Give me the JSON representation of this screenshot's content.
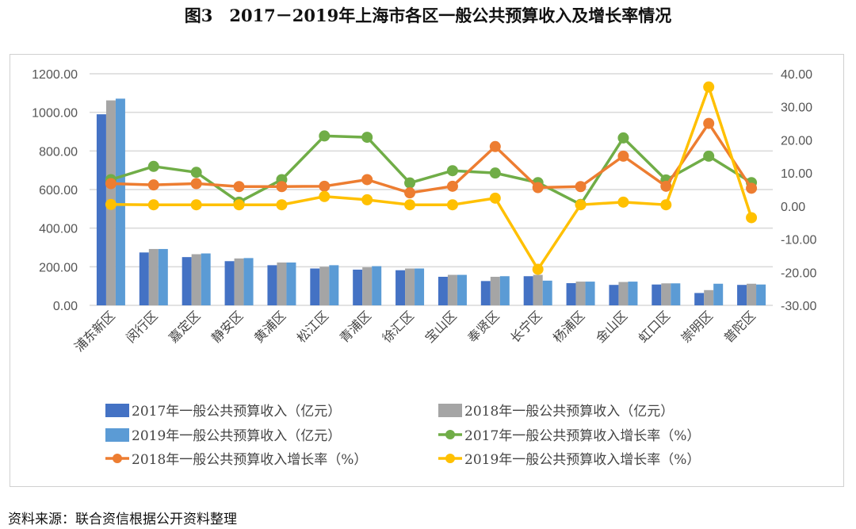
{
  "title": "图3　2017－2019年上海市各区一般公共预算收入及增长率情况",
  "source": "资料来源：联合资信根据公开资料整理",
  "chart_data": {
    "type": "bar+line",
    "categories": [
      "浦东新区",
      "闵行区",
      "嘉定区",
      "静安区",
      "黄浦区",
      "松江区",
      "青浦区",
      "徐汇区",
      "宝山区",
      "奉贤区",
      "长宁区",
      "杨浦区",
      "金山区",
      "虹口区",
      "崇明区",
      "普陀区"
    ],
    "left_axis": {
      "ylim": [
        0,
        1200
      ],
      "ticks": [
        "0.00",
        "200.00",
        "400.00",
        "600.00",
        "800.00",
        "1000.00",
        "1200.00"
      ]
    },
    "right_axis": {
      "ylim": [
        -30,
        40
      ],
      "ticks": [
        "-30.00",
        "-20.00",
        "-10.00",
        "0.00",
        "10.00",
        "20.00",
        "30.00",
        "40.00"
      ]
    },
    "grid": true,
    "legend_position": "bottom",
    "bar_series": [
      {
        "name": "2017年一般公共预算收入（亿元）",
        "color": "#4472C4",
        "values": [
          990,
          274,
          250,
          229,
          208,
          191,
          185,
          182,
          148,
          126,
          151,
          115,
          106,
          108,
          64,
          106
        ]
      },
      {
        "name": "2018年一般公共预算收入（亿元）",
        "color": "#A5A5A5",
        "values": [
          1062,
          292,
          265,
          243,
          222,
          200,
          197,
          191,
          158,
          148,
          158,
          123,
          121,
          114,
          79,
          112
        ]
      },
      {
        "name": "2019年一般公共预算收入（亿元）",
        "color": "#5B9BD5",
        "values": [
          1071,
          292,
          269,
          245,
          222,
          208,
          203,
          191,
          158,
          151,
          128,
          123,
          123,
          114,
          112,
          108
        ]
      }
    ],
    "line_series": [
      {
        "name": "2017年一般公共预算收入增长率（%）",
        "color": "#70AD47",
        "values": [
          8.0,
          12.0,
          10.2,
          1.2,
          8.0,
          21.2,
          20.8,
          7.0,
          10.7,
          10.0,
          7.1,
          0.5,
          20.6,
          7.9,
          15.1,
          7.1
        ]
      },
      {
        "name": "2018年一般公共预算收入增长率（%）",
        "color": "#ED7D31",
        "values": [
          6.8,
          6.4,
          6.8,
          5.9,
          5.9,
          6.0,
          8.0,
          4.0,
          6.0,
          18.0,
          5.6,
          5.9,
          15.1,
          6.0,
          25.0,
          5.4
        ]
      },
      {
        "name": "2019年一般公共预算收入增长率（%）",
        "color": "#FFC000",
        "values": [
          0.5,
          0.4,
          0.4,
          0.4,
          0.4,
          2.9,
          1.9,
          0.4,
          0.4,
          2.4,
          -19.1,
          0.4,
          1.2,
          0.4,
          36.0,
          -3.5
        ]
      }
    ],
    "legend_order": [
      [
        "bar",
        0
      ],
      [
        "bar",
        1
      ],
      [
        "bar",
        2
      ],
      [
        "line",
        0
      ],
      [
        "line",
        1
      ],
      [
        "line",
        2
      ]
    ]
  }
}
